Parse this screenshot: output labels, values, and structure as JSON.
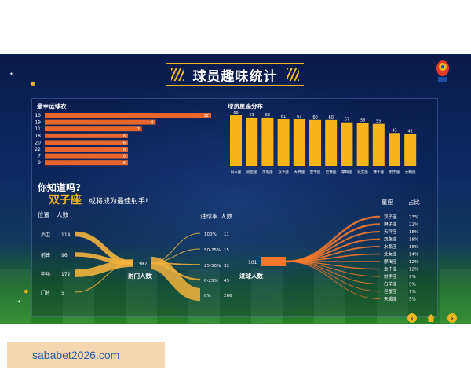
{
  "title": "球员趣味统计",
  "did_you_know": "你知道吗?",
  "headline_sign": "双子座",
  "headline_rest": "或将成为最佳射手!",
  "watermark": "sababet2026.com",
  "colors": {
    "bar": "#e8652b",
    "zodiac_bar": "#f7b51a",
    "gold": "#f0b81e",
    "flow": "#f2b33d",
    "right_flow": "#ff7a2a"
  },
  "chart_data": [
    {
      "type": "bar",
      "orientation": "horizontal",
      "title": "最幸运球衣",
      "categories": [
        "10",
        "19",
        "11",
        "18",
        "20",
        "22",
        "7",
        "9"
      ],
      "values": [
        12,
        8,
        7,
        6,
        6,
        6,
        6,
        6
      ]
    },
    {
      "type": "bar",
      "title": "球员星座分布",
      "categories": [
        "白羊座",
        "双鱼座",
        "水瓶座",
        "双子座",
        "天秤座",
        "金牛座",
        "巨蟹座",
        "摩羯座",
        "处女座",
        "狮子座",
        "射手座",
        "天蝎座"
      ],
      "values": [
        66,
        63,
        63,
        61,
        61,
        60,
        60,
        57,
        56,
        55,
        43,
        42
      ]
    },
    {
      "type": "sankey",
      "left_header": {
        "position": "位置",
        "count": "人数"
      },
      "positions": [
        {
          "label": "后卫",
          "value": 114
        },
        {
          "label": "前锋",
          "value": 96
        },
        {
          "label": "中场",
          "value": 172
        },
        {
          "label": "门将",
          "value": 5
        }
      ],
      "total_shooters": 387,
      "total_label": "射门人数",
      "rate_header": {
        "rate": "进球率",
        "count": "人数"
      },
      "rates": [
        {
          "label": "100%",
          "value": 11
        },
        {
          "label": "50-75%",
          "value": 15
        },
        {
          "label": "25-50%",
          "value": 32
        },
        {
          "label": "0-25%",
          "value": 43
        },
        {
          "label": "0%",
          "value": 286
        }
      ],
      "scorers_total": 101,
      "scorers_label": "进球人数",
      "right_header": {
        "sign": "星座",
        "share": "占比"
      },
      "zodiac_share": [
        {
          "label": "双子座",
          "value": "23%"
        },
        {
          "label": "狮子座",
          "value": "22%"
        },
        {
          "label": "天秤座",
          "value": "18%"
        },
        {
          "label": "双鱼座",
          "value": "18%"
        },
        {
          "label": "水瓶座",
          "value": "16%"
        },
        {
          "label": "处女座",
          "value": "14%"
        },
        {
          "label": "摩羯座",
          "value": "12%"
        },
        {
          "label": "金牛座",
          "value": "12%"
        },
        {
          "label": "射手座",
          "value": "9%"
        },
        {
          "label": "白羊座",
          "value": "9%"
        },
        {
          "label": "巨蟹座",
          "value": "7%"
        },
        {
          "label": "天蝎座",
          "value": "5%"
        }
      ]
    }
  ]
}
